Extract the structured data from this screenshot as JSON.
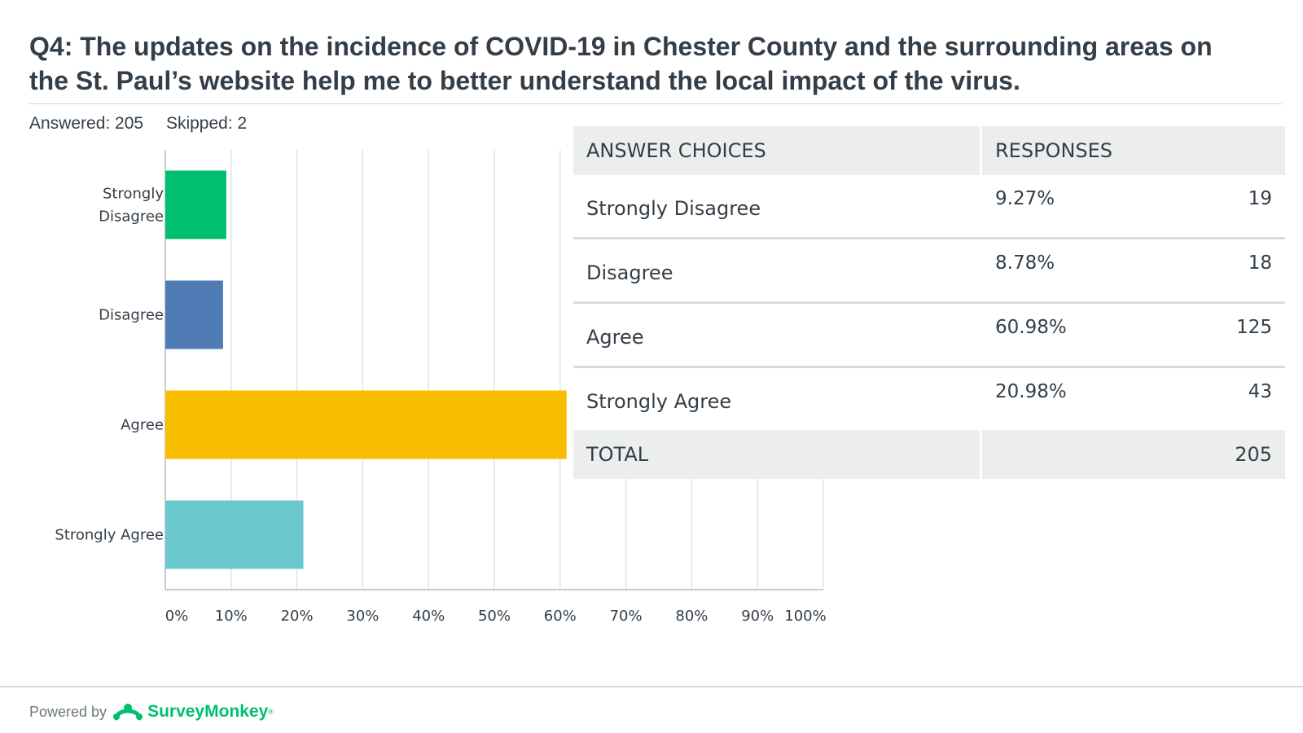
{
  "question": {
    "title": "Q4: The updates on the incidence of COVID-19 in Chester County and the surrounding areas on the St. Paul’s website help me to better understand the local impact of the virus.",
    "answered_label": "Answered: 205",
    "skipped_label": "Skipped: 2"
  },
  "chart_data": {
    "type": "bar",
    "orientation": "horizontal",
    "title": "",
    "xlabel": "",
    "ylabel": "",
    "categories": [
      "Strongly Disagree",
      "Disagree",
      "Agree",
      "Strongly Agree"
    ],
    "category_lines": [
      [
        "Strongly",
        "Disagree"
      ],
      [
        "Disagree"
      ],
      [
        "Agree"
      ],
      [
        "Strongly Agree"
      ]
    ],
    "values": [
      9.27,
      8.78,
      60.98,
      20.98
    ],
    "colors": [
      "#00bf6f",
      "#507cb6",
      "#f9be00",
      "#6bc8cd"
    ],
    "xlim": [
      0,
      100
    ],
    "xticks": [
      0,
      10,
      20,
      30,
      40,
      50,
      60,
      70,
      80,
      90,
      100
    ],
    "xtick_labels": [
      "0%",
      "10%",
      "20%",
      "30%",
      "40%",
      "50%",
      "60%",
      "70%",
      "80%",
      "90%",
      "100%"
    ],
    "grid": true,
    "legend": "none"
  },
  "table": {
    "headers": [
      "ANSWER CHOICES",
      "RESPONSES"
    ],
    "rows": [
      {
        "choice": "Strongly Disagree",
        "percent": "9.27%",
        "count": "19"
      },
      {
        "choice": "Disagree",
        "percent": "8.78%",
        "count": "18"
      },
      {
        "choice": "Agree",
        "percent": "60.98%",
        "count": "125"
      },
      {
        "choice": "Strongly Agree",
        "percent": "20.98%",
        "count": "43"
      }
    ],
    "total_label": "TOTAL",
    "total_count": "205"
  },
  "footer": {
    "powered_by": "Powered by",
    "brand": "SurveyMonkey",
    "brand_mark": "®",
    "logo_icon": "surveymonkey-logo-icon"
  }
}
